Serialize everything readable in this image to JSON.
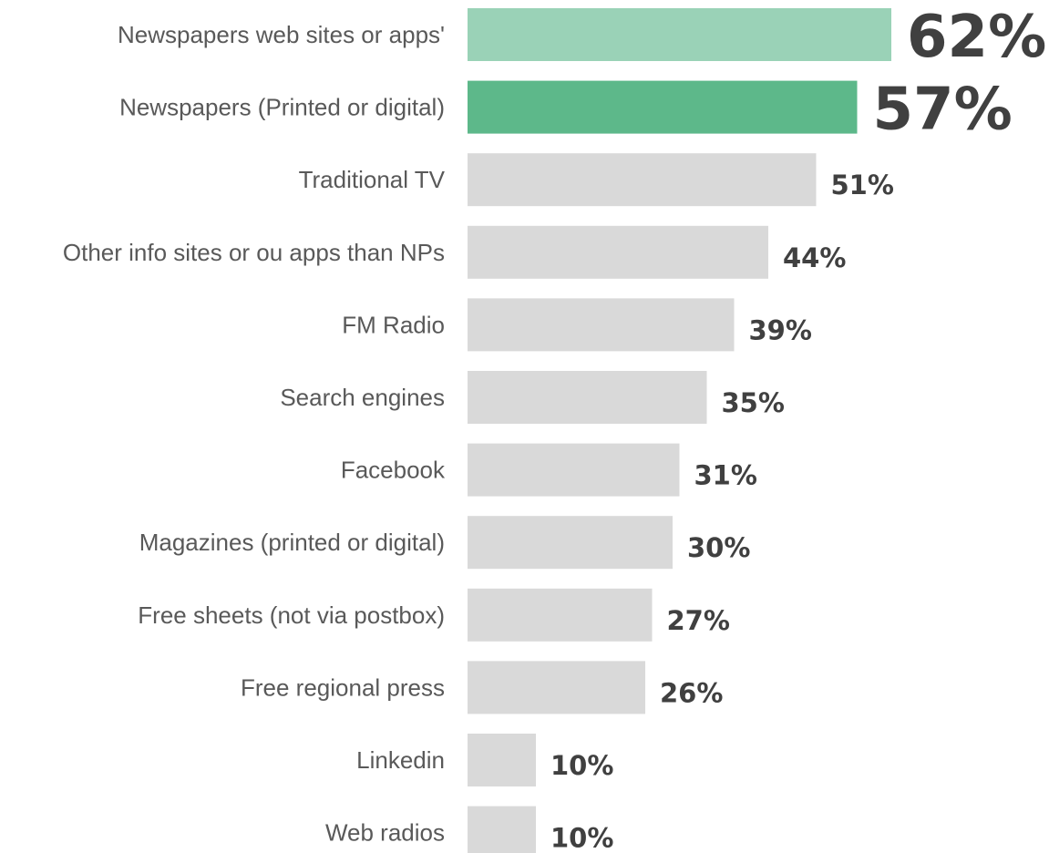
{
  "chart_data": {
    "type": "bar",
    "orientation": "horizontal",
    "title": "",
    "xlabel": "",
    "ylabel": "",
    "xlim": [
      0,
      100
    ],
    "grid": false,
    "legend": "none",
    "categories": [
      "Newspapers web sites or apps'",
      "Newspapers (Printed or digital)",
      "Traditional TV",
      "Other info sites or ou apps than NPs",
      "FM Radio",
      "Search engines",
      "Facebook",
      "Magazines (printed or digital)",
      "Free sheets (not via postbox)",
      "Free regional press",
      "Linkedin",
      "Web radios"
    ],
    "values": [
      62,
      57,
      51,
      44,
      39,
      35,
      31,
      30,
      27,
      26,
      10,
      10
    ],
    "value_labels": [
      "62%",
      "57%",
      "51%",
      "44%",
      "39%",
      "35%",
      "31%",
      "30%",
      "27%",
      "26%",
      "10%",
      "10%"
    ],
    "bar_colors": [
      "#9ad2b7",
      "#5db88a",
      "#d9d9d9",
      "#d9d9d9",
      "#d9d9d9",
      "#d9d9d9",
      "#d9d9d9",
      "#d9d9d9",
      "#d9d9d9",
      "#d9d9d9",
      "#d9d9d9",
      "#d9d9d9"
    ],
    "highlighted": [
      true,
      true,
      false,
      false,
      false,
      false,
      false,
      false,
      false,
      false,
      false,
      false
    ],
    "label_color": "#595959",
    "value_color": "#404040"
  }
}
